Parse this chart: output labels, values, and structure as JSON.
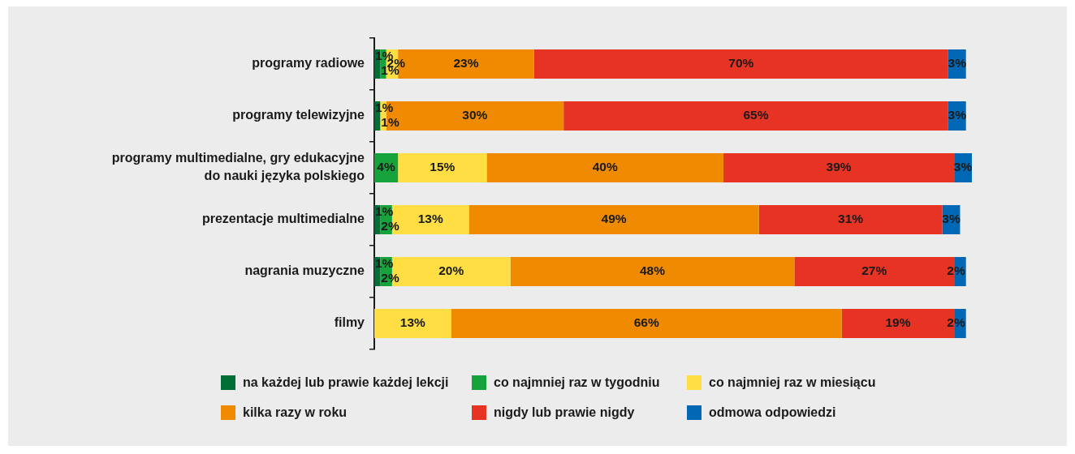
{
  "chart_data": {
    "type": "bar",
    "orientation": "horizontal",
    "stacked": true,
    "grid": false,
    "legend": "bottom",
    "tick_labels": "y",
    "categories": [
      "programy radiowe",
      "programy telewizyjne",
      "programy multimedialne, gry edukacyjne do nauki języka polskiego",
      "prezentacje multimedialne",
      "nagrania muzyczne",
      "filmy"
    ],
    "series": [
      {
        "name": "na każdej lub prawie każdej lekcji",
        "color": "#006f35",
        "values": [
          1,
          1,
          null,
          1,
          1,
          null
        ],
        "value_labels": [
          "1%",
          "1%",
          null,
          "1%",
          "1%",
          null
        ]
      },
      {
        "name": "co najmniej raz w tygodniu",
        "color": "#17a33b",
        "values": [
          1,
          null,
          4,
          2,
          2,
          null
        ],
        "value_labels": [
          "1%",
          null,
          "4%",
          "2%",
          "2%",
          null
        ]
      },
      {
        "name": "co najmniej raz w miesiącu",
        "color": "#ffde44",
        "values": [
          2,
          1,
          15,
          13,
          20,
          13
        ],
        "value_labels": [
          "2%",
          "1%",
          "15%",
          "13%",
          "20%",
          "13%"
        ]
      },
      {
        "name": "kilka razy w roku",
        "color": "#f08a00",
        "values": [
          23,
          30,
          40,
          49,
          48,
          66
        ],
        "value_labels": [
          "23%",
          "30%",
          "40%",
          "49%",
          "48%",
          "66%"
        ]
      },
      {
        "name": "nigdy lub prawie nigdy",
        "color": "#e63323",
        "values": [
          70,
          65,
          39,
          31,
          27,
          19
        ],
        "value_labels": [
          "70%",
          "65%",
          "39%",
          "31%",
          "27%",
          "19%"
        ]
      },
      {
        "name": "odmowa odpowiedzi",
        "color": "#0068b4",
        "values": [
          3,
          3,
          3,
          3,
          2,
          2
        ],
        "value_labels": [
          "3%",
          "3%",
          "3%",
          "3%",
          "2%",
          "2%"
        ]
      }
    ]
  }
}
